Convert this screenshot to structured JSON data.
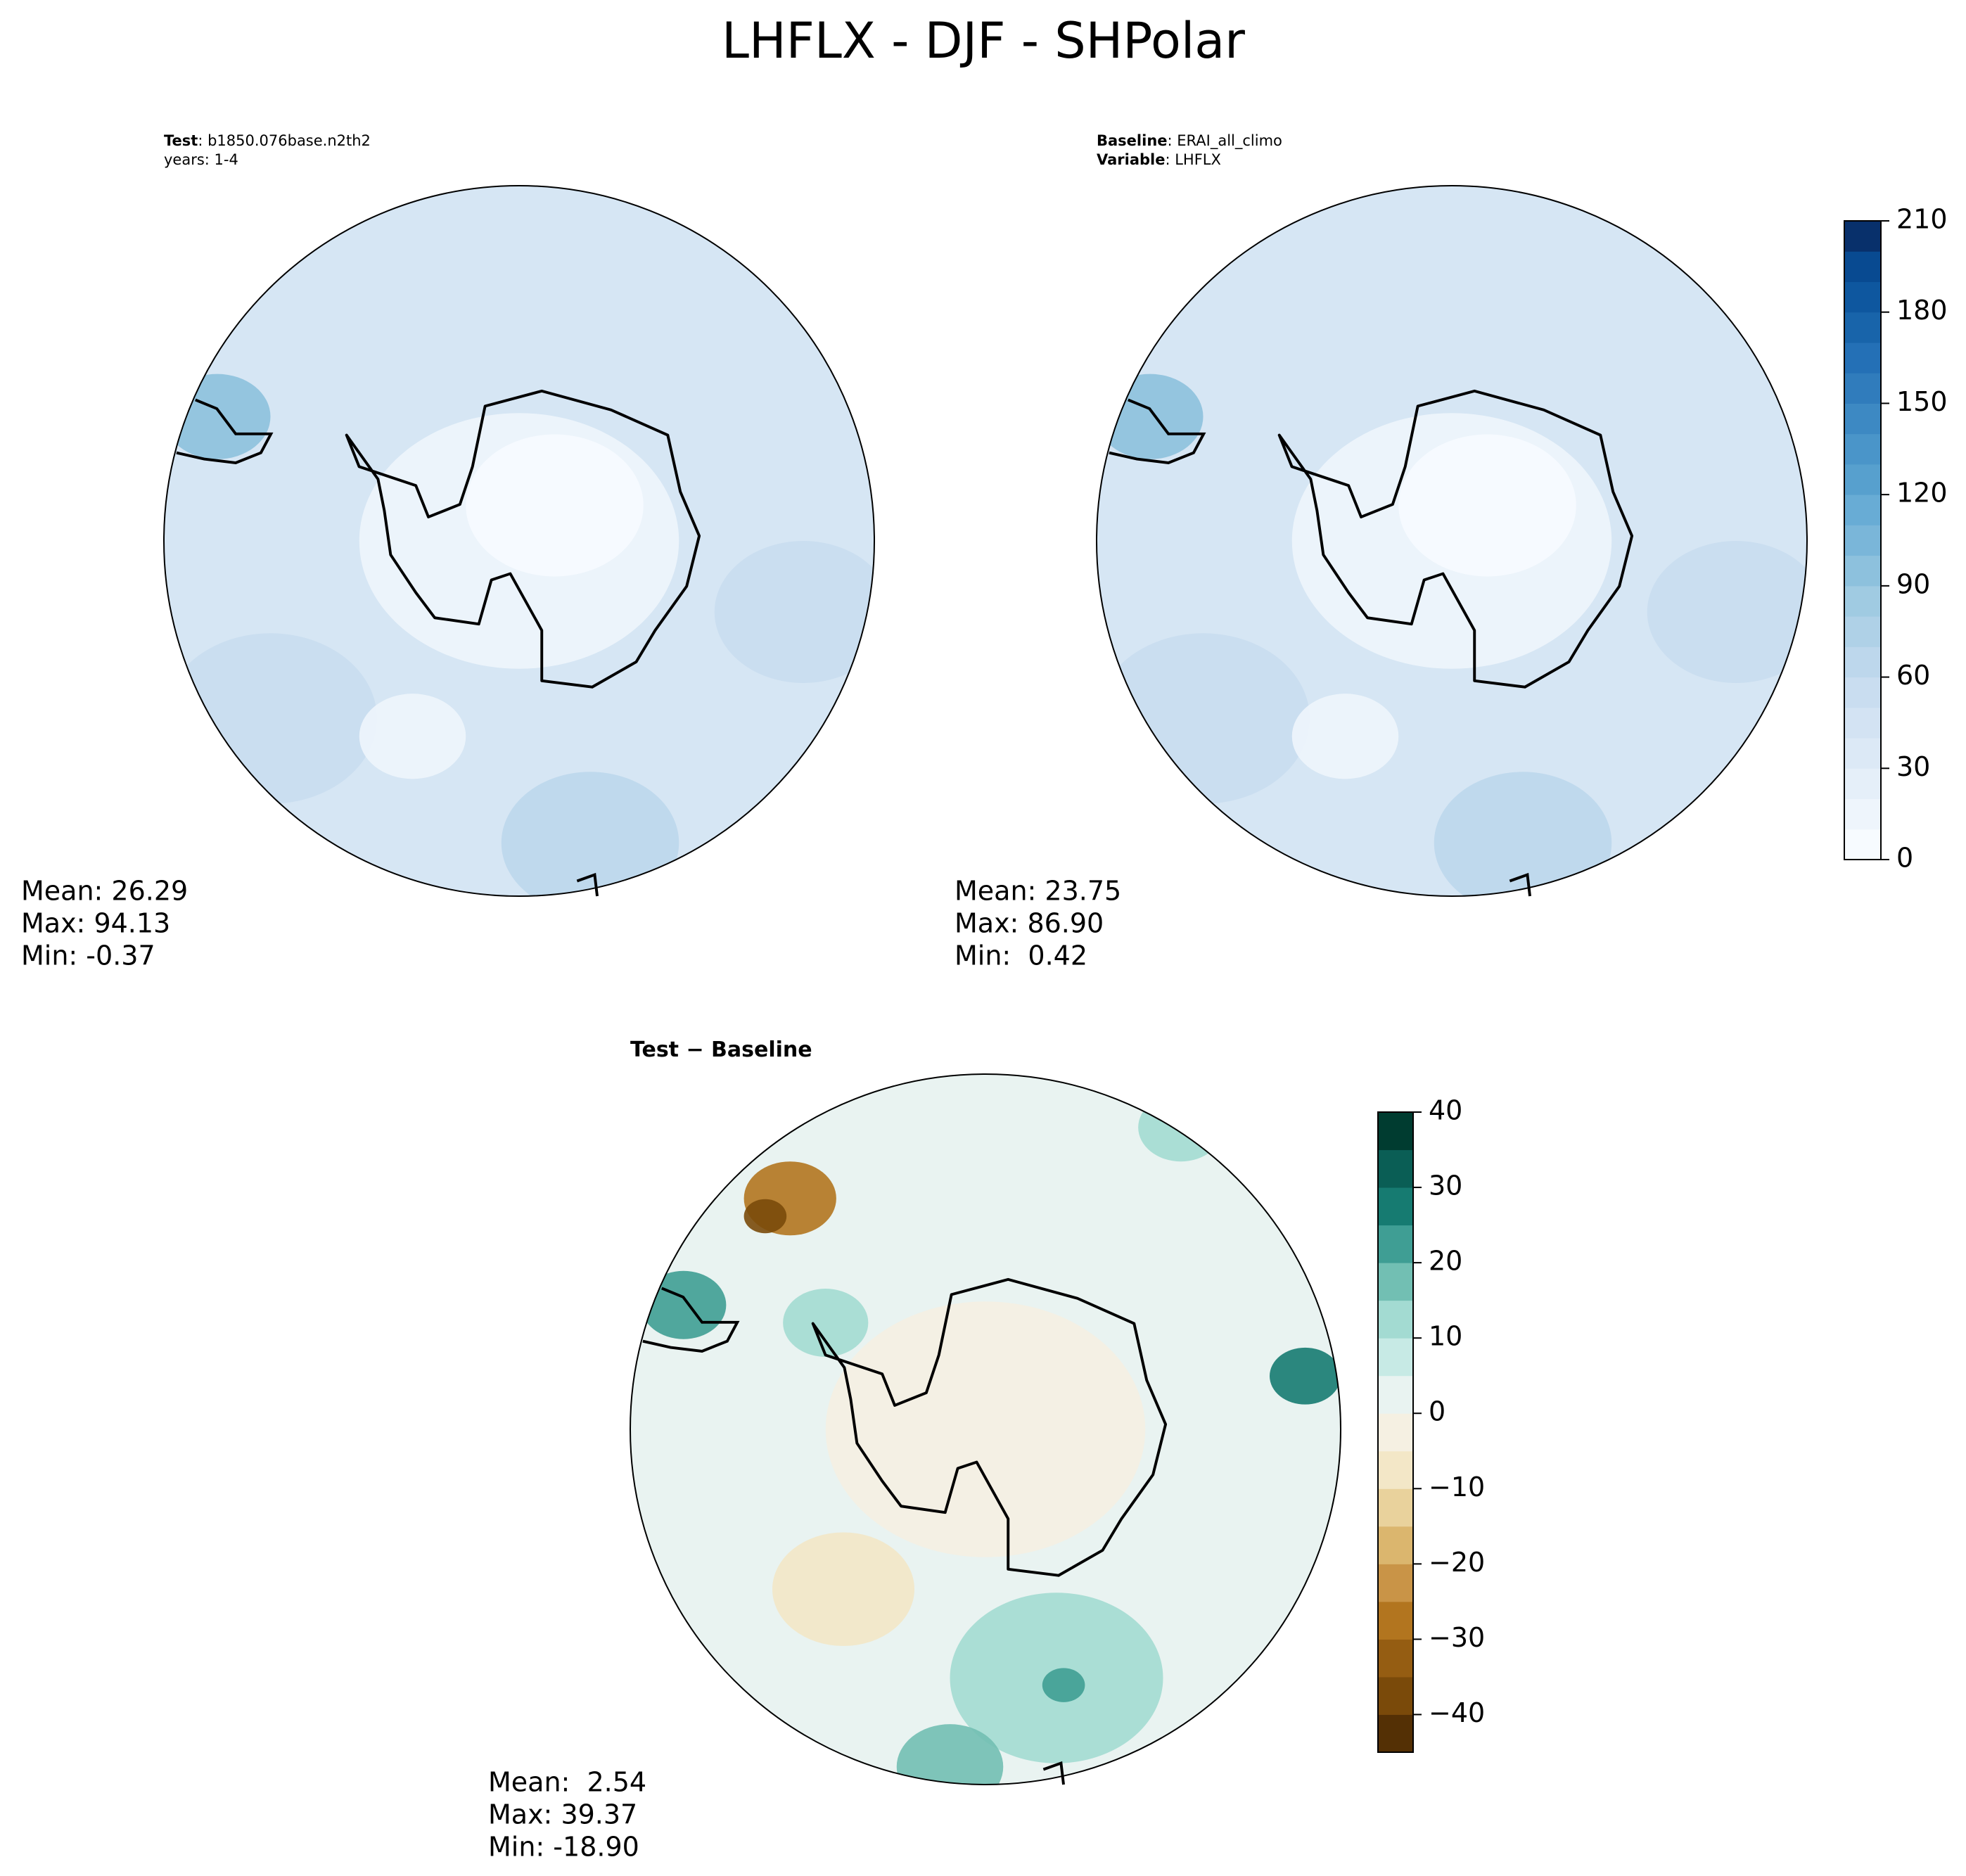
{
  "title": "LHFLX - DJF - SHPolar",
  "panels": [
    {
      "header": [
        [
          {
            "text": "Test",
            "bold": true
          },
          {
            "text": ": b1850.076base.n2th2"
          }
        ],
        [
          {
            "text": "years: 1-4"
          }
        ]
      ],
      "stats": [
        "Mean: 26.29",
        "Max: 94.13",
        "Min: -0.37"
      ]
    },
    {
      "header": [
        [
          {
            "text": "Baseline",
            "bold": true
          },
          {
            "text": ": ERAI_all_climo"
          }
        ],
        [
          {
            "text": "Variable",
            "bold": true
          },
          {
            "text": ": LHFLX"
          }
        ]
      ],
      "stats": [
        "Mean: 23.75",
        "Max: 86.90",
        "Min:  0.42"
      ],
      "colorbar": {
        "lim": [
          0,
          210
        ],
        "ticks": [
          0,
          30,
          60,
          90,
          120,
          150,
          180,
          210
        ],
        "colors": [
          "#f7fbff",
          "#eef5fc",
          "#e5eff9",
          "#dce9f6",
          "#d3e3f3",
          "#c9ddf0",
          "#bdd7ec",
          "#afd1e7",
          "#a0cbe2",
          "#8dc1dd",
          "#7ab6d9",
          "#68acd5",
          "#57a0ce",
          "#4a95c9",
          "#3d89c3",
          "#307cbc",
          "#2470b6",
          "#1864aa",
          "#0e579f",
          "#084a91",
          "#08306b"
        ]
      }
    },
    {
      "header": [
        [
          {
            "text": "Test − Baseline",
            "bold": true
          }
        ]
      ],
      "stats": [
        "Mean:  2.54",
        "Max: 39.37",
        "Min: -18.90"
      ],
      "colorbar": {
        "lim": [
          -45,
          40
        ],
        "ticks": [
          {
            "value": -40,
            "label": "−40"
          },
          {
            "value": -30,
            "label": "−30"
          },
          {
            "value": -20,
            "label": "−20"
          },
          {
            "value": -10,
            "label": "−10"
          },
          0,
          10,
          20,
          30,
          40
        ],
        "colors": [
          "#543005",
          "#7a4a0a",
          "#955d12",
          "#b2751f",
          "#c99447",
          "#dbb66e",
          "#e9d29c",
          "#f3e7c7",
          "#f5f0e2",
          "#e9f3f1",
          "#c7eae5",
          "#a3dbd2",
          "#72bfb3",
          "#3f9e94",
          "#167b71",
          "#0a5e55",
          "#003c30"
        ]
      }
    }
  ]
}
